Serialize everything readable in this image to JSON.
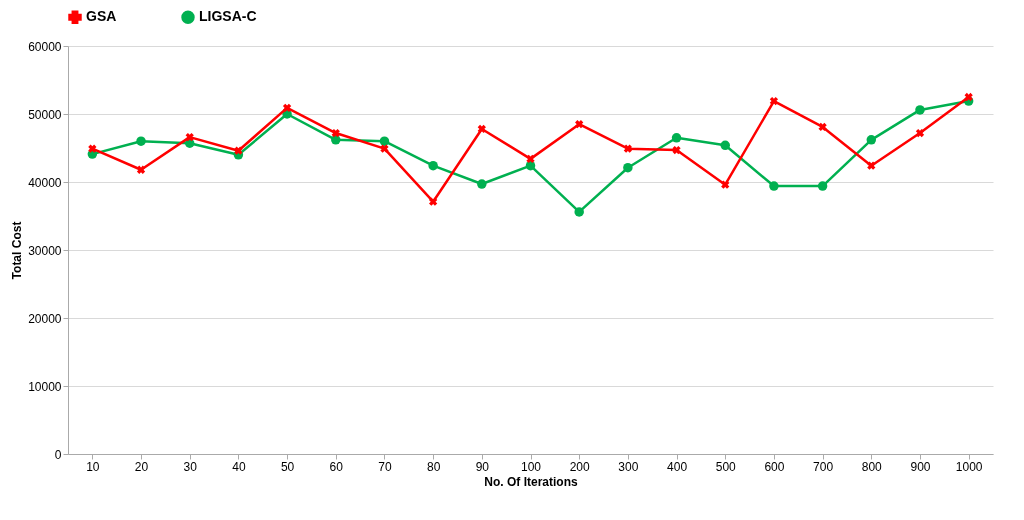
{
  "chart_data": {
    "type": "line",
    "xlabel": "No. Of Iterations",
    "ylabel": "Total Cost",
    "categories": [
      "10",
      "20",
      "30",
      "40",
      "50",
      "60",
      "70",
      "80",
      "90",
      "100",
      "200",
      "300",
      "400",
      "500",
      "600",
      "700",
      "800",
      "900",
      "1000"
    ],
    "series": [
      {
        "name": "GSA",
        "color": "#ff0000",
        "marker": "cross",
        "values": [
          44900,
          41800,
          46600,
          44600,
          50900,
          47200,
          44900,
          37100,
          47800,
          43400,
          48500,
          44900,
          44700,
          39600,
          51900,
          48100,
          42400,
          47200,
          52500
        ]
      },
      {
        "name": "LIGSA-C",
        "color": "#00b050",
        "marker": "circle",
        "values": [
          44100,
          46000,
          45700,
          44000,
          50000,
          46200,
          46000,
          42400,
          39700,
          42400,
          35600,
          42100,
          46500,
          45400,
          39400,
          39400,
          46200,
          50600,
          51900
        ]
      }
    ],
    "ylim": [
      0,
      60000
    ],
    "yticks": [
      0,
      10000,
      20000,
      30000,
      40000,
      50000,
      60000
    ],
    "grid": "y",
    "legend": "top",
    "line_style": "solid"
  }
}
